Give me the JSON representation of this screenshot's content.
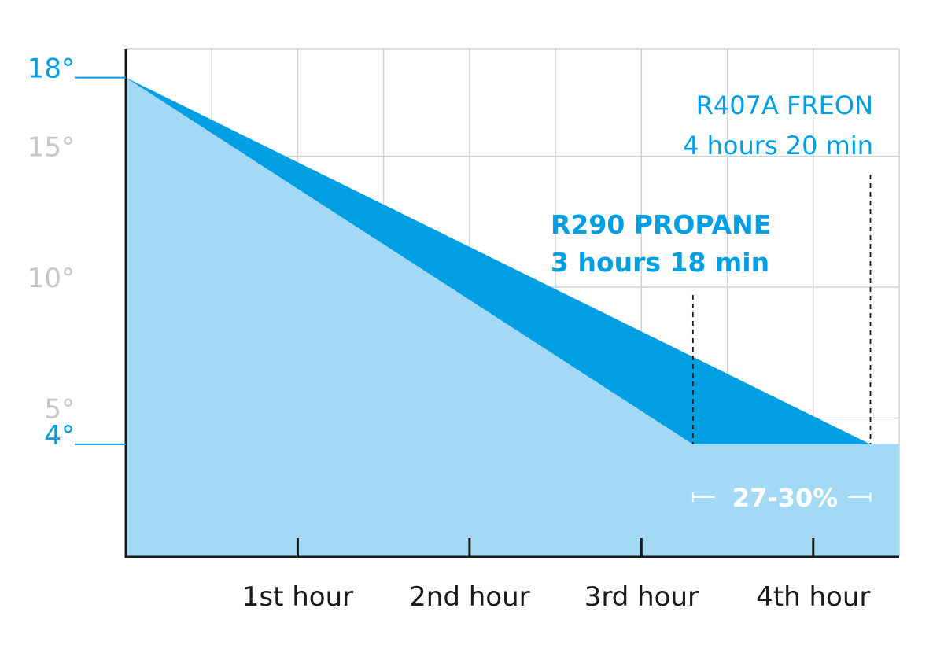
{
  "chart_data": {
    "type": "area",
    "x_unit": "hours",
    "y_unit": "°",
    "x_tick_labels": [
      {
        "x": 1,
        "label": "1st hour"
      },
      {
        "x": 2,
        "label": "2nd hour"
      },
      {
        "x": 3,
        "label": "3rd hour"
      },
      {
        "x": 4,
        "label": "4th hour"
      }
    ],
    "xlim": [
      0,
      4.5
    ],
    "y_tick_labels": [
      {
        "y": 18,
        "label": "18°",
        "highlight": true
      },
      {
        "y": 15,
        "label": "15°",
        "highlight": false
      },
      {
        "y": 10,
        "label": "10°",
        "highlight": false
      },
      {
        "y": 5,
        "label": "5°",
        "highlight": false
      },
      {
        "y": 4,
        "label": "4°",
        "highlight": true
      }
    ],
    "ylim": [
      -0.3,
      19.1
    ],
    "grid": true,
    "series": [
      {
        "name": "R407A FREON",
        "color": "#009ee3",
        "points": [
          {
            "x": 0,
            "y": 18
          },
          {
            "x": 4.333,
            "y": 4
          }
        ],
        "annotation": [
          "R407A FREON",
          "4 hours 20 min"
        ]
      },
      {
        "name": "R290 PROPANE",
        "color": "#a3d9f5",
        "points": [
          {
            "x": 0,
            "y": 18
          },
          {
            "x": 3.3,
            "y": 4
          }
        ],
        "annotation": [
          "R290 PROPANE",
          "3 hours 18 min"
        ]
      }
    ],
    "difference_label": "27-30%",
    "colors": {
      "highlight_text": "#009ee3",
      "muted_text": "#c4c6c8",
      "axis": "#1a1a1a",
      "grid": "#cfd2d4"
    }
  }
}
